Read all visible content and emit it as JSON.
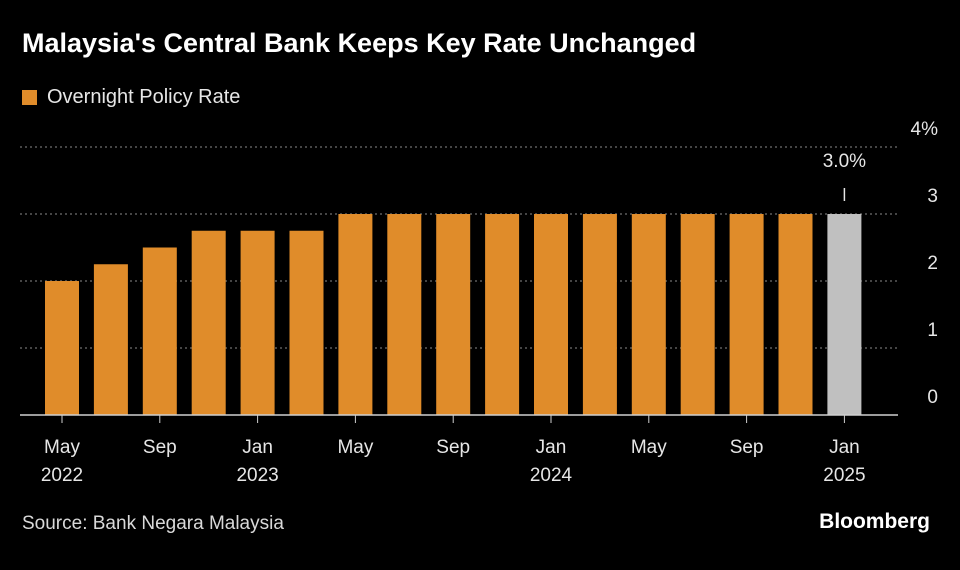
{
  "chart_data": {
    "type": "bar",
    "title": "Malaysia's Central Bank Keeps Key Rate Unchanged",
    "series": [
      {
        "name": "Overnight Policy Rate",
        "color": "#e08c2a",
        "values": [
          2.0,
          2.25,
          2.5,
          2.75,
          2.75,
          2.75,
          3.0,
          3.0,
          3.0,
          3.0,
          3.0,
          3.0,
          3.0,
          3.0,
          3.0,
          3.0,
          3.0
        ]
      }
    ],
    "highlight": {
      "index": 16,
      "color": "#c0c0c0",
      "label": "3.0%"
    },
    "x_ticks": [
      {
        "index": 0,
        "line1": "May",
        "line2": "2022"
      },
      {
        "index": 2,
        "line1": "Sep",
        "line2": ""
      },
      {
        "index": 4,
        "line1": "Jan",
        "line2": "2023"
      },
      {
        "index": 6,
        "line1": "May",
        "line2": ""
      },
      {
        "index": 8,
        "line1": "Sep",
        "line2": ""
      },
      {
        "index": 10,
        "line1": "Jan",
        "line2": "2024"
      },
      {
        "index": 12,
        "line1": "May",
        "line2": ""
      },
      {
        "index": 14,
        "line1": "Sep",
        "line2": ""
      },
      {
        "index": 16,
        "line1": "Jan",
        "line2": "2025"
      }
    ],
    "y_ticks": [
      {
        "value": 0,
        "label": "0"
      },
      {
        "value": 1,
        "label": "1"
      },
      {
        "value": 2,
        "label": "2"
      },
      {
        "value": 3,
        "label": "3"
      },
      {
        "value": 4,
        "label": "4%"
      }
    ],
    "ylim": [
      0,
      4
    ],
    "grid": "dotted horizontal",
    "legend_position": "top-left"
  },
  "footer": {
    "source": "Source: Bank Negara Malaysia",
    "brand": "Bloomberg"
  }
}
